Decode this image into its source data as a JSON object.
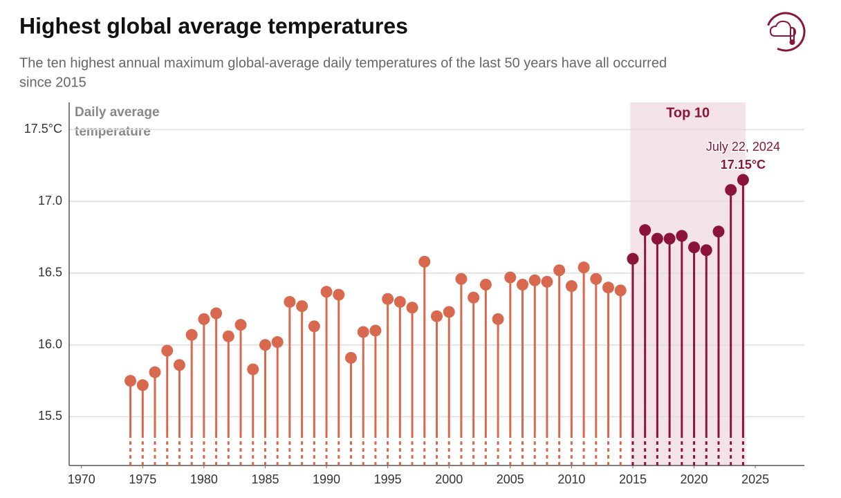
{
  "chart_data": {
    "type": "lollipop",
    "title": "Highest global average temperatures",
    "subtitle": [
      "The ten highest annual maximum global-average daily temperatures of the last 50 years have all occurred",
      "since 2015"
    ],
    "y_label": [
      "Daily average",
      "temperature"
    ],
    "x": [
      1974,
      1975,
      1976,
      1977,
      1978,
      1979,
      1980,
      1981,
      1982,
      1983,
      1984,
      1985,
      1986,
      1987,
      1988,
      1989,
      1990,
      1991,
      1992,
      1993,
      1994,
      1995,
      1996,
      1997,
      1998,
      1999,
      2000,
      2001,
      2002,
      2003,
      2004,
      2005,
      2006,
      2007,
      2008,
      2009,
      2010,
      2011,
      2012,
      2013,
      2014,
      2015,
      2016,
      2017,
      2018,
      2019,
      2020,
      2021,
      2022,
      2023,
      2024
    ],
    "values": [
      15.75,
      15.72,
      15.81,
      15.96,
      15.86,
      16.07,
      16.18,
      16.22,
      16.06,
      16.14,
      15.83,
      16.0,
      16.02,
      16.3,
      16.27,
      16.13,
      16.37,
      16.35,
      15.91,
      16.09,
      16.1,
      16.32,
      16.3,
      16.26,
      16.58,
      16.2,
      16.23,
      16.46,
      16.33,
      16.42,
      16.18,
      16.47,
      16.42,
      16.45,
      16.44,
      16.52,
      16.41,
      16.54,
      16.46,
      16.4,
      16.38,
      16.6,
      16.8,
      16.74,
      16.74,
      16.76,
      16.68,
      16.66,
      16.79,
      17.08,
      17.15
    ],
    "value_labels": [
      null,
      null,
      null,
      null,
      null,
      null,
      null,
      null,
      null,
      null,
      null,
      null,
      null,
      null,
      null,
      null,
      null,
      null,
      null,
      null,
      null,
      null,
      null,
      null,
      null,
      null,
      null,
      null,
      null,
      null,
      null,
      null,
      null,
      null,
      null,
      null,
      null,
      null,
      null,
      null,
      null,
      null,
      null,
      null,
      null,
      null,
      null,
      null,
      null,
      null,
      "17.15°C"
    ],
    "annotation": "July 22, 2024",
    "color": "#d9694e",
    "highlight": {
      "label": "Top 10",
      "xlim": [
        2014.8,
        2024.2
      ],
      "color": "#8b1538",
      "fill": "#f3e3e6"
    },
    "xlim": [
      1969,
      2029
    ],
    "ylim": [
      15.16,
      17.69
    ],
    "xticks": [
      1970,
      1975,
      1980,
      1985,
      1990,
      1995,
      2000,
      2005,
      2010,
      2015,
      2020,
      2025
    ],
    "yticks": [
      {
        "value": 15.5,
        "label": "15.5"
      },
      {
        "value": 16,
        "label": "16.0"
      },
      {
        "value": 16.5,
        "label": "16.5"
      },
      {
        "value": 17,
        "label": "17.0"
      },
      {
        "value": 17.5,
        "label": "17.5°C"
      }
    ],
    "grid": true
  }
}
